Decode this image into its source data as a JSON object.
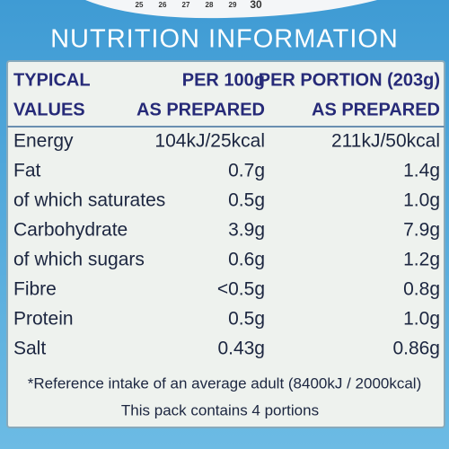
{
  "date_strip": [
    "25",
    "26",
    "27",
    "28",
    "29",
    "30"
  ],
  "header": {
    "title": "NUTRITION INFORMATION"
  },
  "table": {
    "header": [
      [
        "TYPICAL",
        "PER 100g",
        "PER PORTION (203g)"
      ],
      [
        "VALUES",
        "AS PREPARED",
        "AS PREPARED"
      ]
    ],
    "rows": [
      [
        "Energy",
        "104kJ/25kcal",
        "211kJ/50kcal"
      ],
      [
        "Fat",
        "0.7g",
        "1.4g"
      ],
      [
        " of which saturates",
        "0.5g",
        "1.0g"
      ],
      [
        "Carbohydrate",
        "3.9g",
        "7.9g"
      ],
      [
        " of which sugars",
        "0.6g",
        "1.2g"
      ],
      [
        "Fibre",
        "<0.5g",
        "0.8g"
      ],
      [
        "Protein",
        "0.5g",
        "1.0g"
      ],
      [
        "Salt",
        "0.43g",
        "0.86g"
      ]
    ]
  },
  "footer": [
    "*Reference intake of an average adult (8400kJ / 2000kcal)",
    "This pack contains 4 portions"
  ]
}
